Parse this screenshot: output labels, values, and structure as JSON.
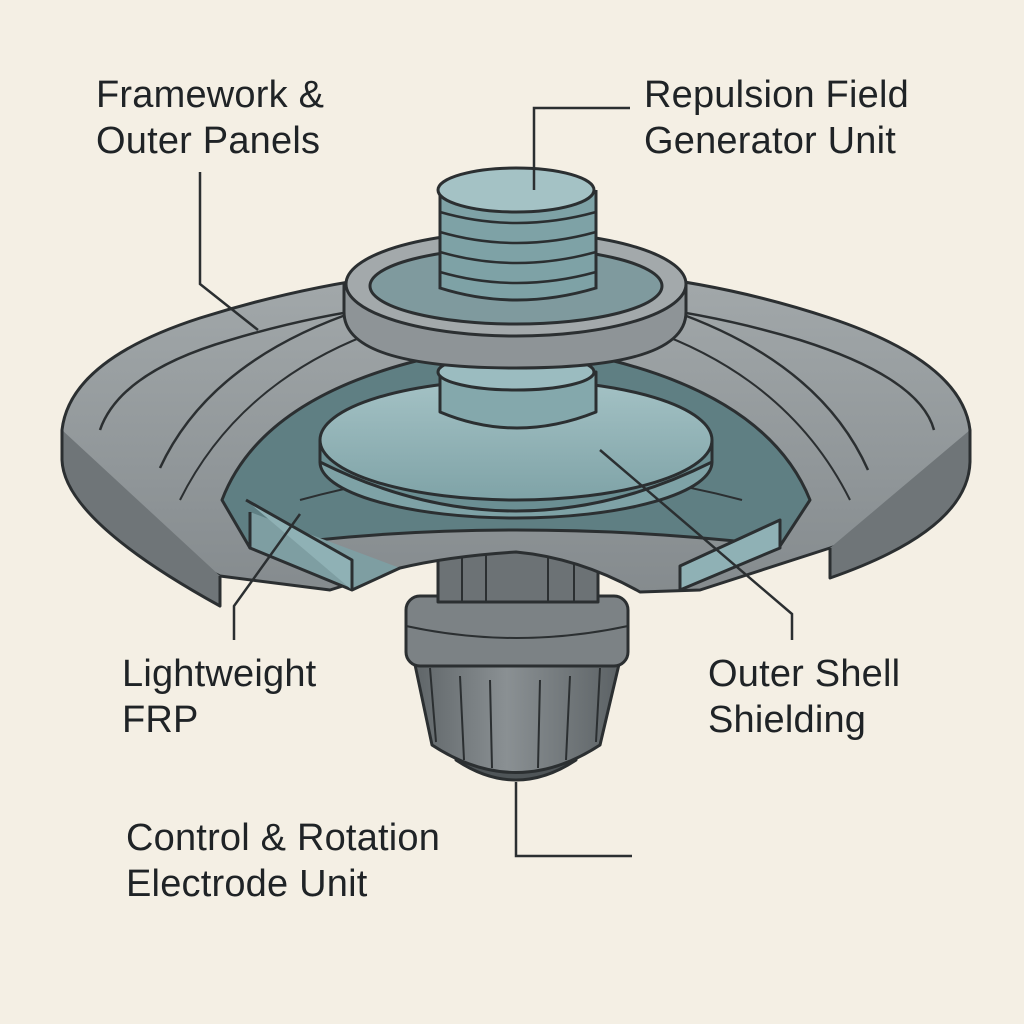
{
  "labels": {
    "framework": {
      "line1": "Framework &",
      "line2": "Outer Panels"
    },
    "repulsion": {
      "line1": "Repulsion Field",
      "line2": "Generator Unit"
    },
    "frp": {
      "line1": "Lightweight",
      "line2": "FRP"
    },
    "shell": {
      "line1": "Outer Shell",
      "line2": "Shielding"
    },
    "control": {
      "line1": "Control & Rotation",
      "line2": "Electrode Unit"
    }
  },
  "colors": {
    "background": "#f4efe4",
    "metal": "#8e9497",
    "metal_light": "#a9afb1",
    "metal_dark": "#6b7174",
    "glass": "#8fb1b5",
    "glass_dark": "#6f9498",
    "outline": "#2b2f31"
  }
}
